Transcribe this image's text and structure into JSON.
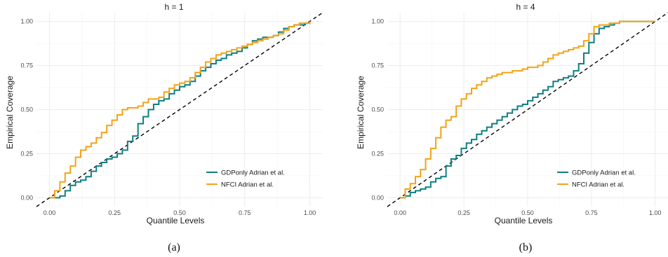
{
  "colors": {
    "gdp": "#0f7f80",
    "nfci": "#f2a316",
    "grid": "#ececec",
    "diag": "#000000"
  },
  "chart_data": [
    {
      "type": "line",
      "title": "h = 1",
      "xlabel": "Quantile Levels",
      "ylabel": "Empirical Coverage",
      "caption": "(a)",
      "xlim": [
        -0.05,
        1.05
      ],
      "ylim": [
        -0.05,
        1.05
      ],
      "xticks": [
        0,
        0.25,
        0.5,
        0.75,
        1
      ],
      "yticks": [
        0,
        0.25,
        0.5,
        0.75,
        1
      ],
      "xtick_labels": [
        "0.00",
        "0.25",
        "0.50",
        "0.75",
        "1.00"
      ],
      "ytick_labels": [
        "0.00",
        "0.25",
        "0.50",
        "0.75",
        "1.00"
      ],
      "grid": true,
      "legend_position": "bottom-right",
      "reference_line": "dashed diagonal y = x",
      "series": [
        {
          "name": "GDPonly Adrian et al.",
          "color_key": "gdp",
          "x": [
            0,
            0.02,
            0.04,
            0.06,
            0.08,
            0.1,
            0.12,
            0.14,
            0.16,
            0.18,
            0.2,
            0.22,
            0.24,
            0.26,
            0.28,
            0.3,
            0.32,
            0.34,
            0.36,
            0.38,
            0.4,
            0.42,
            0.44,
            0.46,
            0.48,
            0.5,
            0.52,
            0.54,
            0.56,
            0.58,
            0.6,
            0.62,
            0.64,
            0.66,
            0.68,
            0.7,
            0.72,
            0.74,
            0.76,
            0.78,
            0.8,
            0.82,
            0.84,
            0.86,
            0.88,
            0.9,
            0.92,
            0.94,
            0.96,
            0.98,
            1.0
          ],
          "y": [
            0,
            0.0,
            0.01,
            0.04,
            0.07,
            0.09,
            0.1,
            0.12,
            0.15,
            0.18,
            0.2,
            0.22,
            0.23,
            0.25,
            0.27,
            0.32,
            0.35,
            0.42,
            0.46,
            0.5,
            0.53,
            0.55,
            0.56,
            0.59,
            0.61,
            0.63,
            0.64,
            0.66,
            0.69,
            0.72,
            0.74,
            0.76,
            0.78,
            0.79,
            0.81,
            0.82,
            0.83,
            0.85,
            0.87,
            0.89,
            0.9,
            0.91,
            0.91,
            0.92,
            0.94,
            0.96,
            0.97,
            0.98,
            0.98,
            0.99,
            1.0
          ]
        },
        {
          "name": "NFCI Adrian et al.",
          "color_key": "nfci",
          "x": [
            0,
            0.02,
            0.04,
            0.06,
            0.08,
            0.1,
            0.12,
            0.14,
            0.16,
            0.18,
            0.2,
            0.22,
            0.24,
            0.26,
            0.28,
            0.3,
            0.32,
            0.34,
            0.36,
            0.38,
            0.4,
            0.42,
            0.44,
            0.46,
            0.48,
            0.5,
            0.52,
            0.54,
            0.56,
            0.58,
            0.6,
            0.62,
            0.64,
            0.66,
            0.68,
            0.7,
            0.72,
            0.74,
            0.76,
            0.78,
            0.8,
            0.82,
            0.84,
            0.86,
            0.88,
            0.9,
            0.92,
            0.94,
            0.96,
            0.98,
            1.0
          ],
          "y": [
            0,
            0.04,
            0.09,
            0.14,
            0.18,
            0.23,
            0.27,
            0.29,
            0.31,
            0.34,
            0.37,
            0.41,
            0.44,
            0.47,
            0.5,
            0.51,
            0.51,
            0.52,
            0.54,
            0.56,
            0.56,
            0.57,
            0.6,
            0.62,
            0.64,
            0.65,
            0.66,
            0.68,
            0.71,
            0.74,
            0.77,
            0.79,
            0.81,
            0.82,
            0.83,
            0.84,
            0.85,
            0.86,
            0.87,
            0.88,
            0.89,
            0.9,
            0.91,
            0.92,
            0.93,
            0.95,
            0.97,
            0.98,
            0.99,
            0.99,
            1.0
          ]
        }
      ]
    },
    {
      "type": "line",
      "title": "h = 4",
      "xlabel": "Quantile Levels",
      "ylabel": "Empirical Coverage",
      "caption": "(b)",
      "xlim": [
        -0.05,
        1.05
      ],
      "ylim": [
        -0.05,
        1.05
      ],
      "xticks": [
        0,
        0.25,
        0.5,
        0.75,
        1
      ],
      "yticks": [
        0,
        0.25,
        0.5,
        0.75,
        1
      ],
      "xtick_labels": [
        "0.00",
        "0.25",
        "0.50",
        "0.75",
        "1.00"
      ],
      "ytick_labels": [
        "0.00",
        "0.25",
        "0.50",
        "0.75",
        "1.00"
      ],
      "grid": true,
      "legend_position": "bottom-right",
      "reference_line": "dashed diagonal y = x",
      "series": [
        {
          "name": "GDPonly Adrian et al.",
          "color_key": "gdp",
          "x": [
            0,
            0.02,
            0.04,
            0.06,
            0.08,
            0.1,
            0.12,
            0.14,
            0.16,
            0.18,
            0.2,
            0.22,
            0.24,
            0.26,
            0.28,
            0.3,
            0.32,
            0.34,
            0.36,
            0.38,
            0.4,
            0.42,
            0.44,
            0.46,
            0.48,
            0.5,
            0.52,
            0.54,
            0.56,
            0.58,
            0.6,
            0.62,
            0.64,
            0.66,
            0.68,
            0.7,
            0.72,
            0.74,
            0.76,
            0.78,
            0.8,
            0.82,
            0.84,
            0.86,
            0.88,
            0.9,
            0.92,
            0.94,
            0.96,
            0.98,
            1.0
          ],
          "y": [
            0,
            0.01,
            0.03,
            0.04,
            0.05,
            0.06,
            0.09,
            0.11,
            0.12,
            0.18,
            0.22,
            0.24,
            0.28,
            0.31,
            0.33,
            0.36,
            0.38,
            0.4,
            0.42,
            0.44,
            0.46,
            0.48,
            0.5,
            0.52,
            0.53,
            0.55,
            0.57,
            0.59,
            0.61,
            0.63,
            0.66,
            0.67,
            0.68,
            0.69,
            0.72,
            0.76,
            0.82,
            0.88,
            0.93,
            0.96,
            0.97,
            0.98,
            0.99,
            1.0,
            1.0,
            1.0,
            1.0,
            1.0,
            1.0,
            1.0,
            1.0
          ]
        },
        {
          "name": "NFCI Adrian et al.",
          "color_key": "nfci",
          "x": [
            0,
            0.02,
            0.04,
            0.06,
            0.08,
            0.1,
            0.12,
            0.14,
            0.16,
            0.18,
            0.2,
            0.22,
            0.24,
            0.26,
            0.28,
            0.3,
            0.32,
            0.34,
            0.36,
            0.38,
            0.4,
            0.42,
            0.44,
            0.46,
            0.48,
            0.5,
            0.52,
            0.54,
            0.56,
            0.58,
            0.6,
            0.62,
            0.64,
            0.66,
            0.68,
            0.7,
            0.72,
            0.74,
            0.76,
            0.78,
            0.8,
            0.82,
            0.84,
            0.86,
            0.88,
            0.9,
            0.92,
            0.94,
            0.96,
            0.98,
            1.0
          ],
          "y": [
            0,
            0.05,
            0.08,
            0.12,
            0.16,
            0.22,
            0.28,
            0.34,
            0.4,
            0.44,
            0.46,
            0.52,
            0.56,
            0.59,
            0.62,
            0.64,
            0.66,
            0.68,
            0.69,
            0.7,
            0.71,
            0.71,
            0.72,
            0.72,
            0.73,
            0.74,
            0.74,
            0.75,
            0.77,
            0.79,
            0.81,
            0.82,
            0.83,
            0.84,
            0.85,
            0.86,
            0.89,
            0.93,
            0.97,
            0.98,
            0.98,
            0.99,
            0.99,
            1.0,
            1.0,
            1.0,
            1.0,
            1.0,
            1.0,
            1.0,
            1.0
          ]
        }
      ]
    }
  ]
}
